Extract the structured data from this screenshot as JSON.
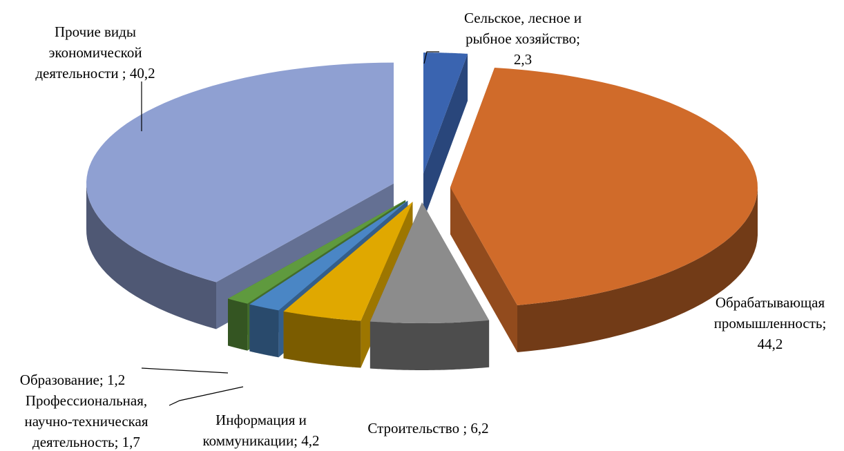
{
  "chart_data": {
    "type": "pie3d",
    "categories": [
      "Сельское, лесное и рыбное хозяйство;",
      "Обрабатывающая промышленность;",
      "Строительство ;",
      "Информация и коммуникации;",
      "Профессиональная, научно-техническая деятельность;",
      "Образование;",
      "Прочие виды экономической деятельности ;"
    ],
    "values": [
      2.3,
      44.2,
      6.2,
      4.2,
      1.7,
      1.2,
      40.2
    ],
    "value_labels": [
      "2,3",
      "44,2",
      "6,2",
      "4,2",
      "1,7",
      "1,2",
      "40,2"
    ],
    "colors": [
      "#3a64b0",
      "#d06b2a",
      "#8c8c8c",
      "#e0a800",
      "#4a86c5",
      "#5f9a3e",
      "#8fa0d2"
    ]
  }
}
